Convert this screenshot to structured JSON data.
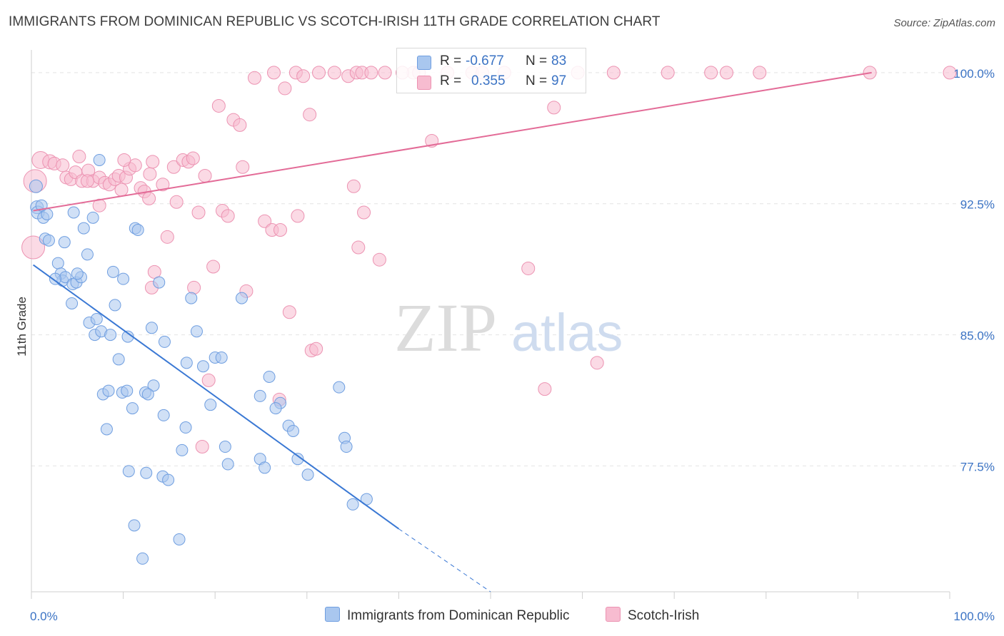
{
  "title": "IMMIGRANTS FROM DOMINICAN REPUBLIC VS SCOTCH-IRISH 11TH GRADE CORRELATION CHART",
  "source": "Source: ZipAtlas.com",
  "watermark": {
    "zip": "ZIP",
    "atlas": "atlas"
  },
  "legend": {
    "r_label": "R =",
    "n_label": "N =",
    "series1": {
      "r": "-0.677",
      "n": "83"
    },
    "series2": {
      "r": "0.355",
      "n": "97"
    }
  },
  "bottom_legend": {
    "series1": "Immigrants from Dominican Republic",
    "series2": "Scotch-Irish"
  },
  "colors": {
    "blue_fill": "#a9c7ef",
    "blue_stroke": "#6f9ee0",
    "blue_line": "#3a78d4",
    "pink_fill": "#f7bcd0",
    "pink_stroke": "#ec93b2",
    "pink_line": "#e36b97",
    "tick_text": "#3b73c4",
    "grid": "#e4e4e4"
  },
  "chart_data": {
    "type": "scatter",
    "title": "IMMIGRANTS FROM DOMINICAN REPUBLIC VS SCOTCH-IRISH 11TH GRADE CORRELATION CHART",
    "xlabel": "",
    "ylabel": "11th Grade",
    "xlim": [
      0,
      100
    ],
    "ylim": [
      70.3,
      101.3
    ],
    "x_tick_labels": [
      "0.0%",
      "100.0%"
    ],
    "y_ticks": [
      77.5,
      85.0,
      92.5,
      100.0
    ],
    "y_tick_labels": [
      "77.5%",
      "85.0%",
      "92.5%",
      "100.0%"
    ],
    "grid": true,
    "legend_position": "top-center",
    "series": [
      {
        "name": "Immigrants from Dominican Republic",
        "r": -0.677,
        "n": 83,
        "trend": {
          "x0": 0.2,
          "y0": 89.0,
          "x1": 40.0,
          "y1": 73.9,
          "dash_to_x": 50.0,
          "dash_to_y": 70.3
        },
        "points": [
          [
            0.5,
            93.5,
            9
          ],
          [
            0.6,
            92.3,
            9
          ],
          [
            0.7,
            92.0,
            9
          ],
          [
            1.3,
            91.7,
            8
          ],
          [
            1.7,
            91.9,
            8
          ],
          [
            1.5,
            90.5,
            8
          ],
          [
            1.9,
            90.4,
            8
          ],
          [
            3.6,
            90.3,
            8
          ],
          [
            4.6,
            92.0,
            8
          ],
          [
            5.7,
            91.1,
            8
          ],
          [
            6.7,
            91.7,
            8
          ],
          [
            7.4,
            95.0,
            8
          ],
          [
            11.3,
            91.1,
            8
          ],
          [
            11.6,
            91.0,
            8
          ],
          [
            2.9,
            89.1,
            8
          ],
          [
            3.2,
            88.5,
            8
          ],
          [
            3.4,
            88.1,
            8
          ],
          [
            3.7,
            88.3,
            8
          ],
          [
            4.5,
            87.9,
            8
          ],
          [
            4.9,
            88.0,
            8
          ],
          [
            5.4,
            88.3,
            8
          ],
          [
            6.1,
            89.6,
            8
          ],
          [
            8.9,
            88.6,
            8
          ],
          [
            10.0,
            88.2,
            8
          ],
          [
            13.9,
            88.0,
            8
          ],
          [
            4.4,
            86.8,
            8
          ],
          [
            6.3,
            85.7,
            8
          ],
          [
            6.9,
            85.0,
            8
          ],
          [
            7.1,
            85.9,
            8
          ],
          [
            7.6,
            85.2,
            8
          ],
          [
            8.6,
            85.0,
            8
          ],
          [
            9.1,
            86.7,
            8
          ],
          [
            10.5,
            84.9,
            8
          ],
          [
            13.1,
            85.4,
            8
          ],
          [
            14.5,
            84.6,
            8
          ],
          [
            17.4,
            87.1,
            8
          ],
          [
            18.0,
            85.2,
            8
          ],
          [
            22.9,
            87.1,
            8
          ],
          [
            9.5,
            83.6,
            8
          ],
          [
            13.3,
            82.1,
            8
          ],
          [
            16.9,
            83.4,
            8
          ],
          [
            18.7,
            83.2,
            8
          ],
          [
            20.0,
            83.7,
            8
          ],
          [
            20.7,
            83.7,
            8
          ],
          [
            25.9,
            82.6,
            8
          ],
          [
            27.1,
            81.1,
            8
          ],
          [
            33.5,
            82.0,
            8
          ],
          [
            7.8,
            81.6,
            8
          ],
          [
            8.4,
            81.8,
            8
          ],
          [
            9.9,
            81.7,
            8
          ],
          [
            10.4,
            81.8,
            8
          ],
          [
            11.0,
            80.8,
            8
          ],
          [
            12.4,
            81.7,
            8
          ],
          [
            12.7,
            81.6,
            8
          ],
          [
            14.4,
            80.4,
            8
          ],
          [
            19.5,
            81.0,
            8
          ],
          [
            24.9,
            81.5,
            8
          ],
          [
            26.6,
            80.8,
            8
          ],
          [
            28.0,
            79.8,
            8
          ],
          [
            28.5,
            79.5,
            8
          ],
          [
            8.2,
            79.6,
            8
          ],
          [
            16.8,
            79.7,
            8
          ],
          [
            16.4,
            78.4,
            8
          ],
          [
            21.1,
            78.6,
            8
          ],
          [
            24.9,
            77.9,
            8
          ],
          [
            29.0,
            77.9,
            8
          ],
          [
            34.1,
            79.1,
            8
          ],
          [
            34.3,
            78.6,
            8
          ],
          [
            21.4,
            77.6,
            8
          ],
          [
            25.4,
            77.4,
            8
          ],
          [
            10.6,
            77.2,
            8
          ],
          [
            12.5,
            77.1,
            8
          ],
          [
            14.3,
            76.9,
            8
          ],
          [
            14.9,
            76.7,
            8
          ],
          [
            30.1,
            77.0,
            8
          ],
          [
            35.0,
            75.3,
            8
          ],
          [
            36.5,
            75.6,
            8
          ],
          [
            11.2,
            74.1,
            8
          ],
          [
            16.1,
            73.3,
            8
          ],
          [
            12.1,
            72.2,
            8
          ],
          [
            2.6,
            88.2,
            8
          ],
          [
            5.0,
            88.5,
            8
          ],
          [
            1.1,
            92.4,
            8
          ]
        ]
      },
      {
        "name": "Scotch-Irish",
        "r": 0.355,
        "n": 97,
        "trend": {
          "x0": 0.2,
          "y0": 92.1,
          "x1": 91.5,
          "y1": 100.0
        },
        "points": [
          [
            0.4,
            93.8,
            16
          ],
          [
            0.2,
            90.0,
            16
          ],
          [
            1.0,
            95.0,
            12
          ],
          [
            2.0,
            94.9,
            10
          ],
          [
            2.5,
            94.8,
            9
          ],
          [
            3.4,
            94.7,
            9
          ],
          [
            3.8,
            94.0,
            9
          ],
          [
            4.3,
            93.9,
            9
          ],
          [
            4.8,
            94.3,
            9
          ],
          [
            5.5,
            93.8,
            9
          ],
          [
            5.2,
            95.2,
            9
          ],
          [
            6.2,
            94.4,
            9
          ],
          [
            6.7,
            93.8,
            9
          ],
          [
            7.4,
            94.0,
            9
          ],
          [
            8.0,
            93.7,
            9
          ],
          [
            8.5,
            93.6,
            9
          ],
          [
            9.1,
            93.9,
            9
          ],
          [
            9.5,
            94.1,
            9
          ],
          [
            9.8,
            93.3,
            9
          ],
          [
            10.3,
            94.0,
            9
          ],
          [
            10.7,
            94.5,
            9
          ],
          [
            11.3,
            94.7,
            9
          ],
          [
            11.9,
            93.4,
            9
          ],
          [
            12.3,
            93.2,
            9
          ],
          [
            12.9,
            94.2,
            9
          ],
          [
            13.2,
            94.9,
            9
          ],
          [
            14.3,
            93.6,
            9
          ],
          [
            15.5,
            94.6,
            9
          ],
          [
            16.5,
            95.0,
            9
          ],
          [
            17.1,
            94.9,
            9
          ],
          [
            17.6,
            95.1,
            9
          ],
          [
            23.0,
            94.6,
            9
          ],
          [
            15.8,
            92.6,
            9
          ],
          [
            7.4,
            92.4,
            9
          ],
          [
            18.2,
            92.0,
            9
          ],
          [
            20.8,
            92.1,
            9
          ],
          [
            21.4,
            91.8,
            9
          ],
          [
            25.4,
            91.5,
            9
          ],
          [
            26.2,
            91.0,
            9
          ],
          [
            27.1,
            91.0,
            9
          ],
          [
            29.0,
            91.8,
            9
          ],
          [
            35.1,
            93.5,
            9
          ],
          [
            36.2,
            92.0,
            9
          ],
          [
            35.6,
            90.0,
            9
          ],
          [
            37.9,
            89.3,
            9
          ],
          [
            14.8,
            90.6,
            9
          ],
          [
            20.4,
            98.1,
            9
          ],
          [
            22.0,
            97.3,
            9
          ],
          [
            22.7,
            97.0,
            9
          ],
          [
            30.3,
            97.6,
            9
          ],
          [
            43.6,
            96.1,
            9
          ],
          [
            24.3,
            99.7,
            9
          ],
          [
            26.4,
            100.0,
            9
          ],
          [
            27.6,
            99.1,
            9
          ],
          [
            28.8,
            100.0,
            9
          ],
          [
            29.6,
            99.8,
            9
          ],
          [
            31.3,
            100.0,
            9
          ],
          [
            33.0,
            100.0,
            9
          ],
          [
            34.5,
            99.8,
            9
          ],
          [
            35.4,
            100.0,
            9
          ],
          [
            36.0,
            100.0,
            9
          ],
          [
            37.0,
            100.0,
            9
          ],
          [
            38.5,
            100.0,
            9
          ],
          [
            41.6,
            100.0,
            9
          ],
          [
            45.3,
            100.0,
            9
          ],
          [
            48.0,
            100.0,
            9
          ],
          [
            49.1,
            100.0,
            9
          ],
          [
            51.5,
            100.0,
            9
          ],
          [
            56.9,
            98.0,
            9
          ],
          [
            59.5,
            100.0,
            9
          ],
          [
            63.4,
            100.0,
            9
          ],
          [
            69.3,
            100.0,
            9
          ],
          [
            74.0,
            100.0,
            9
          ],
          [
            75.7,
            100.0,
            9
          ],
          [
            79.3,
            100.0,
            9
          ],
          [
            91.3,
            100.0,
            9
          ],
          [
            100.0,
            100.0,
            9
          ],
          [
            13.4,
            88.6,
            9
          ],
          [
            13.1,
            87.7,
            9
          ],
          [
            17.7,
            87.7,
            9
          ],
          [
            19.8,
            88.9,
            9
          ],
          [
            23.4,
            87.5,
            9
          ],
          [
            28.1,
            86.3,
            9
          ],
          [
            30.5,
            84.1,
            9
          ],
          [
            31.0,
            84.2,
            9
          ],
          [
            54.1,
            88.8,
            9
          ],
          [
            55.9,
            81.9,
            9
          ],
          [
            61.6,
            83.4,
            9
          ],
          [
            19.3,
            82.4,
            9
          ],
          [
            27.0,
            81.3,
            9
          ],
          [
            18.6,
            78.6,
            9
          ],
          [
            10.1,
            95.0,
            9
          ],
          [
            18.9,
            94.1,
            9
          ],
          [
            6.1,
            93.8,
            9
          ],
          [
            12.8,
            92.8,
            9
          ],
          [
            40.4,
            100.0,
            9
          ],
          [
            42.2,
            100.0,
            9
          ]
        ]
      }
    ]
  }
}
